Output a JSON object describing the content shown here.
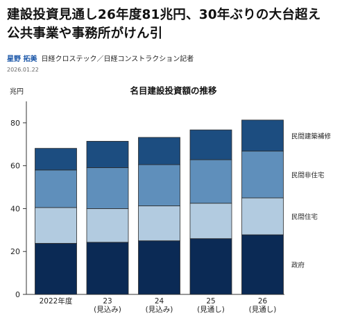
{
  "article": {
    "headline": "建設投資見通し26年度81兆円、30年ぶりの大台超え　公共事業や事務所がけん引",
    "author": "星野 拓美",
    "affiliation": "日経クロステック／日経コンストラクション記者",
    "date": "2026.01.22"
  },
  "chart_data": {
    "type": "bar",
    "stacked": true,
    "title": "名目建設投資額の推移",
    "ylabel": "兆円",
    "ylim": [
      0,
      90
    ],
    "yticks": [
      0,
      20,
      40,
      60,
      80
    ],
    "grid": false,
    "legend_position": "right",
    "categories": [
      [
        "2022年度"
      ],
      [
        "23",
        "(見込み)"
      ],
      [
        "24",
        "(見込み)"
      ],
      [
        "25",
        "(見通し)"
      ],
      [
        "26",
        "(見通し)"
      ]
    ],
    "series": [
      {
        "name": "政府",
        "color": "#0b2a55",
        "values": [
          23.8,
          24.3,
          25.0,
          26.0,
          27.8
        ]
      },
      {
        "name": "民間住宅",
        "color": "#b2cbe0",
        "values": [
          16.7,
          15.7,
          16.3,
          16.5,
          17.2
        ]
      },
      {
        "name": "民間非住宅",
        "color": "#5f8fbb",
        "values": [
          17.5,
          19.1,
          19.2,
          20.3,
          21.8
        ]
      },
      {
        "name": "民間建築補修",
        "color": "#1c4d80",
        "values": [
          10.1,
          12.3,
          12.7,
          13.9,
          14.5
        ]
      }
    ]
  }
}
